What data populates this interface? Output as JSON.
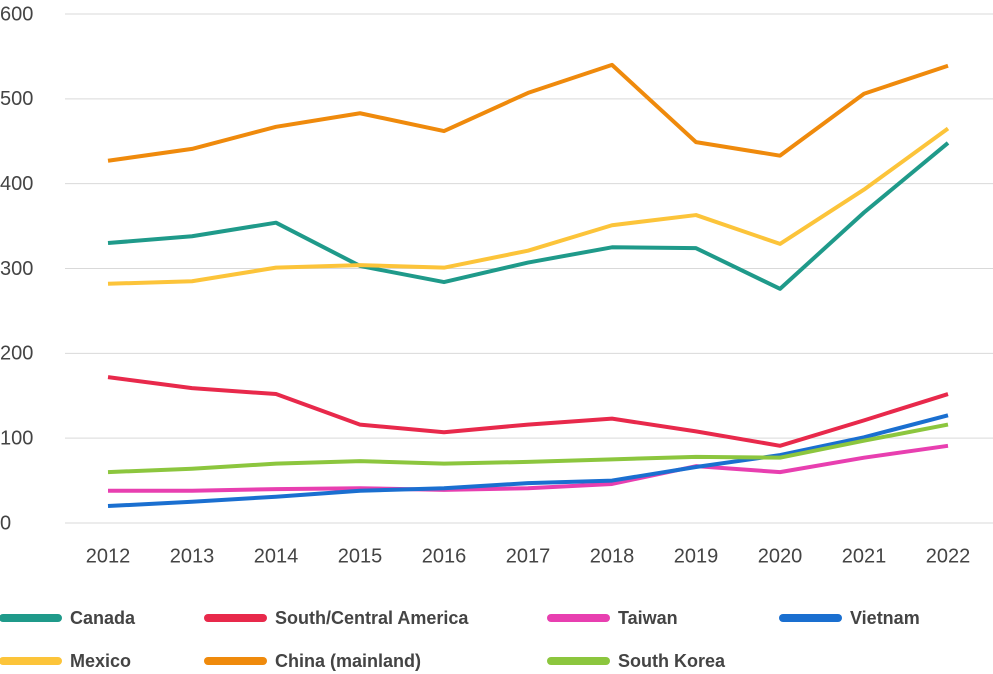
{
  "chart_data": {
    "type": "line",
    "categories": [
      "2012",
      "2013",
      "2014",
      "2015",
      "2016",
      "2017",
      "2018",
      "2019",
      "2020",
      "2021",
      "2022"
    ],
    "series": [
      {
        "name": "Canada",
        "color": "#1f9a8a",
        "values": [
          330,
          338,
          354,
          303,
          284,
          307,
          325,
          324,
          276,
          366,
          448
        ]
      },
      {
        "name": "South/Central America",
        "color": "#e8294b",
        "values": [
          172,
          159,
          152,
          116,
          107,
          116,
          123,
          108,
          91,
          121,
          152
        ]
      },
      {
        "name": "Taiwan",
        "color": "#e83fb0",
        "values": [
          38,
          38,
          40,
          41,
          39,
          41,
          46,
          67,
          60,
          77,
          91
        ]
      },
      {
        "name": "Vietnam",
        "color": "#1a6fd0",
        "values": [
          20,
          25,
          31,
          38,
          41,
          47,
          50,
          66,
          80,
          101,
          127
        ]
      },
      {
        "name": "Mexico",
        "color": "#fcc43a",
        "values": [
          282,
          285,
          301,
          304,
          301,
          321,
          351,
          363,
          329,
          393,
          465
        ]
      },
      {
        "name": "China (mainland)",
        "color": "#ef8a0c",
        "values": [
          427,
          441,
          467,
          483,
          462,
          507,
          540,
          449,
          433,
          506,
          539
        ]
      },
      {
        "name": "South Korea",
        "color": "#8cc63e",
        "values": [
          60,
          64,
          70,
          73,
          70,
          72,
          75,
          78,
          77,
          97,
          116
        ]
      }
    ],
    "ylim": [
      0,
      600
    ],
    "yticks": [
      0,
      100,
      200,
      300,
      400,
      500,
      600
    ],
    "grid": true
  }
}
